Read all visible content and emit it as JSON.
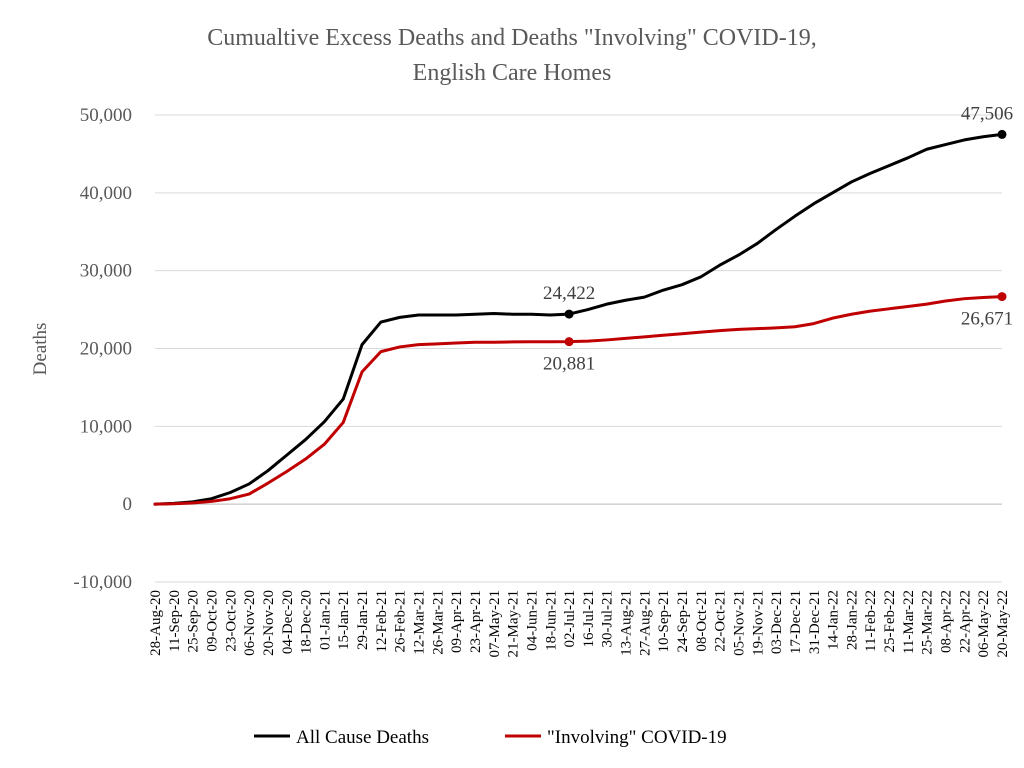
{
  "chart_data": {
    "type": "line",
    "title": "Cumualtive Excess Deaths and Deaths \"Involving\" COVID-19,",
    "subtitle": "English Care Homes",
    "ylabel": "Deaths",
    "xlabel": "",
    "ylim": [
      -10000,
      50000
    ],
    "yticks": [
      -10000,
      0,
      10000,
      20000,
      30000,
      40000,
      50000
    ],
    "ytick_labels": [
      "-10,000",
      "0",
      "10,000",
      "20,000",
      "30,000",
      "40,000",
      "50,000"
    ],
    "grid": true,
    "legend_position": "bottom",
    "x_tick_labels": [
      "28-Aug-20",
      "11-Sep-20",
      "25-Sep-20",
      "09-Oct-20",
      "23-Oct-20",
      "06-Nov-20",
      "20-Nov-20",
      "04-Dec-20",
      "18-Dec-20",
      "01-Jan-21",
      "15-Jan-21",
      "29-Jan-21",
      "12-Feb-21",
      "26-Feb-21",
      "12-Mar-21",
      "26-Mar-21",
      "09-Apr-21",
      "23-Apr-21",
      "07-May-21",
      "21-May-21",
      "04-Jun-21",
      "18-Jun-21",
      "02-Jul-21",
      "16-Jul-21",
      "30-Jul-21",
      "13-Aug-21",
      "27-Aug-21",
      "10-Sep-21",
      "24-Sep-21",
      "08-Oct-21",
      "22-Oct-21",
      "05-Nov-21",
      "19-Nov-21",
      "03-Dec-21",
      "17-Dec-21",
      "31-Dec-21",
      "14-Jan-22",
      "28-Jan-22",
      "11-Feb-22",
      "25-Feb-22",
      "11-Mar-22",
      "25-Mar-22",
      "08-Apr-22",
      "22-Apr-22",
      "06-May-22",
      "20-May-22"
    ],
    "series": [
      {
        "name": "All Cause Deaths",
        "color": "#000000",
        "values": [
          0,
          100,
          300,
          700,
          1500,
          2600,
          4300,
          6300,
          8300,
          10600,
          13500,
          20500,
          23400,
          24000,
          24300,
          24300,
          24300,
          24400,
          24500,
          24400,
          24400,
          24300,
          24422,
          25000,
          25700,
          26200,
          26600,
          27500,
          28200,
          29200,
          30700,
          32000,
          33500,
          35300,
          37000,
          38600,
          40000,
          41400,
          42500,
          43500,
          44500,
          45600,
          46200,
          46800,
          47200,
          47506
        ]
      },
      {
        "name": "\"Involving\" COVID-19",
        "color": "#c00000",
        "values": [
          0,
          50,
          150,
          350,
          700,
          1300,
          2700,
          4200,
          5800,
          7700,
          10500,
          17000,
          19600,
          20200,
          20500,
          20600,
          20700,
          20800,
          20800,
          20850,
          20860,
          20870,
          20881,
          20950,
          21100,
          21300,
          21500,
          21700,
          21900,
          22100,
          22300,
          22450,
          22550,
          22650,
          22800,
          23200,
          23900,
          24400,
          24800,
          25100,
          25400,
          25700,
          26100,
          26400,
          26550,
          26671
        ]
      }
    ],
    "annotations": [
      {
        "series": 0,
        "index": 22,
        "text": "24,422",
        "position": "above"
      },
      {
        "series": 1,
        "index": 22,
        "text": "20,881",
        "position": "below"
      },
      {
        "series": 0,
        "index": 45,
        "text": "47,506",
        "position": "above"
      },
      {
        "series": 1,
        "index": 45,
        "text": "26,671",
        "position": "below"
      }
    ]
  }
}
